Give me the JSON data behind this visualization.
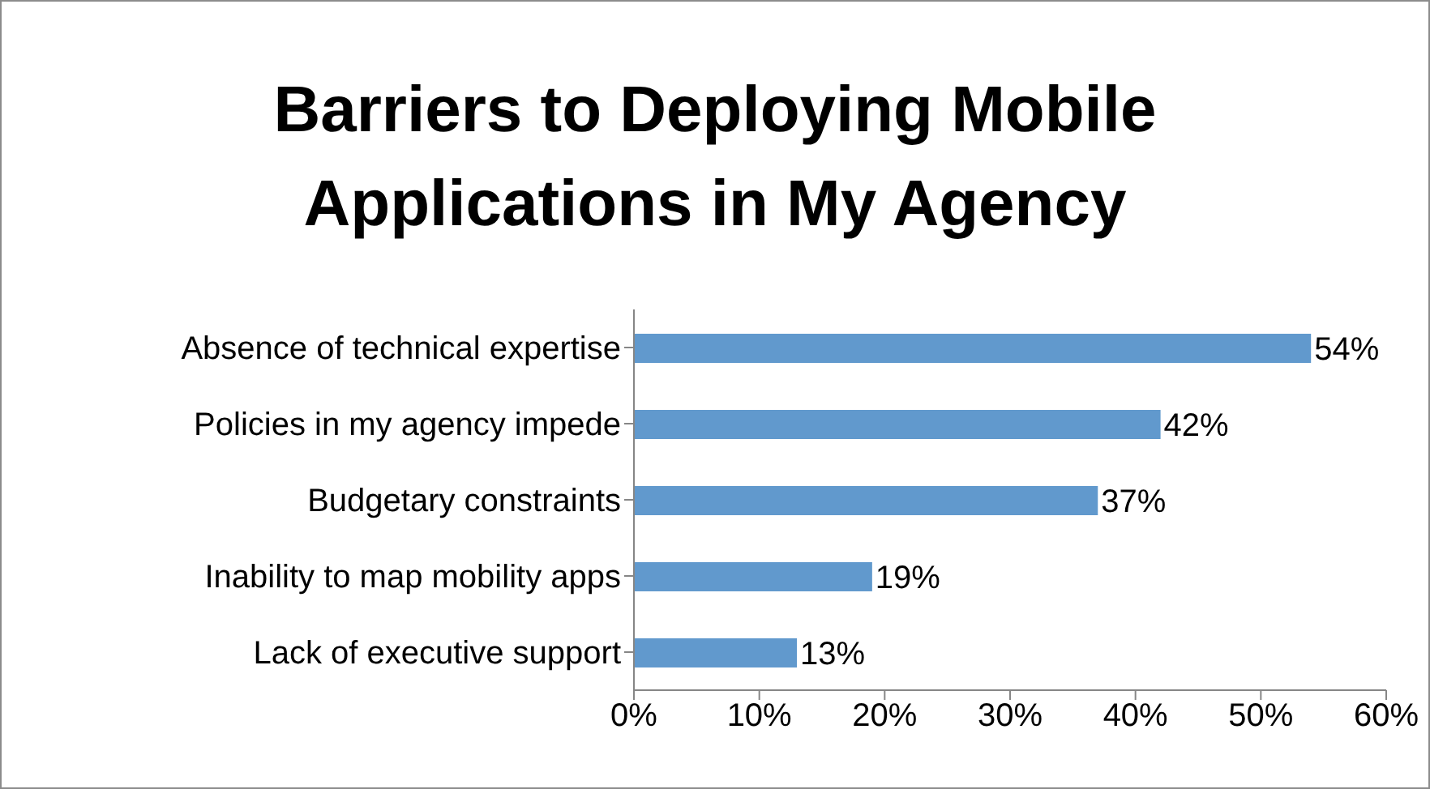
{
  "chart_data": {
    "type": "bar",
    "orientation": "horizontal",
    "title": "Barriers to Deploying Mobile Applications in My Agency",
    "categories": [
      "Absence of technical expertise",
      "Policies in my agency impede",
      "Budgetary constraints",
      "Inability to map mobility apps",
      "Lack of executive support"
    ],
    "values": [
      54,
      42,
      37,
      19,
      13
    ],
    "value_labels": [
      "54%",
      "42%",
      "37%",
      "19%",
      "13%"
    ],
    "color": "#6199cd",
    "xlim": [
      0,
      60
    ],
    "xticks": [
      {
        "value": 0,
        "label": "0%"
      },
      {
        "value": 10,
        "label": "10%"
      },
      {
        "value": 20,
        "label": "20%"
      },
      {
        "value": 30,
        "label": "30%"
      },
      {
        "value": 40,
        "label": "40%"
      },
      {
        "value": 50,
        "label": "50%"
      },
      {
        "value": 60,
        "label": "60%"
      }
    ]
  }
}
